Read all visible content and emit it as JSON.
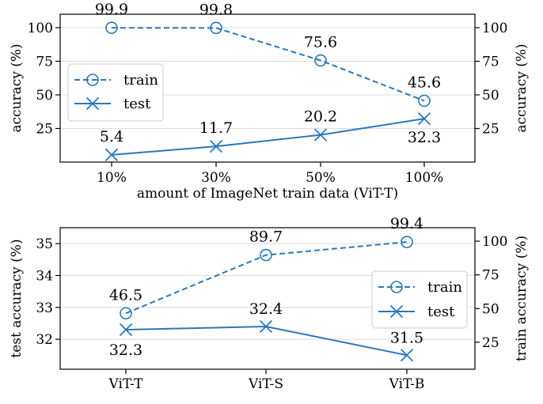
{
  "chart_data": [
    {
      "type": "line",
      "xlabel": "amount of ImageNet train data (ViT-T)",
      "ylabel_left": "accuracy (%)",
      "ylabel_right": "accuracy (%)",
      "categories": [
        "10%",
        "30%",
        "50%",
        "100%"
      ],
      "ylim": [
        0,
        110
      ],
      "yticks_left": [
        "25",
        "50",
        "75",
        "100"
      ],
      "yticks_right": [
        "25",
        "50",
        "75",
        "100"
      ],
      "grid": true,
      "legend": {
        "placement": "center-left",
        "entries": [
          "train",
          "test"
        ]
      },
      "series": [
        {
          "name": "train",
          "values": [
            99.9,
            99.8,
            75.6,
            45.6
          ],
          "labels": [
            "99.9",
            "99.8",
            "75.6",
            "45.6"
          ],
          "style": "dashed",
          "marker": "circle",
          "color": "#2a78b8"
        },
        {
          "name": "test",
          "values": [
            5.4,
            11.7,
            20.2,
            32.3
          ],
          "labels": [
            "5.4",
            "11.7",
            "20.2",
            "32.3"
          ],
          "style": "solid",
          "marker": "x",
          "color": "#2a78b8"
        }
      ]
    },
    {
      "type": "line",
      "xlabel": "",
      "ylabel_left": "test accuracy (%)",
      "ylabel_right": "train accuracy (%)",
      "categories": [
        "ViT-T",
        "ViT-S",
        "ViT-B"
      ],
      "ylim_left": [
        31.06,
        35.5
      ],
      "ylim_right": [
        5,
        110
      ],
      "yticks_left": [
        "32",
        "33",
        "34",
        "35"
      ],
      "yticks_right": [
        "25",
        "50",
        "75",
        "100"
      ],
      "grid": true,
      "legend": {
        "placement": "center-right",
        "entries": [
          "train",
          "test"
        ]
      },
      "series": [
        {
          "name": "train",
          "axis": "right",
          "values": [
            46.5,
            89.7,
            99.4
          ],
          "labels": [
            "46.5",
            "89.7",
            "99.4"
          ],
          "style": "dashed",
          "marker": "circle",
          "color": "#2a78b8"
        },
        {
          "name": "test",
          "axis": "left",
          "values": [
            32.3,
            32.4,
            31.5
          ],
          "labels": [
            "32.3",
            "32.4",
            "31.5"
          ],
          "style": "solid",
          "marker": "x",
          "color": "#2a78b8"
        }
      ]
    }
  ]
}
